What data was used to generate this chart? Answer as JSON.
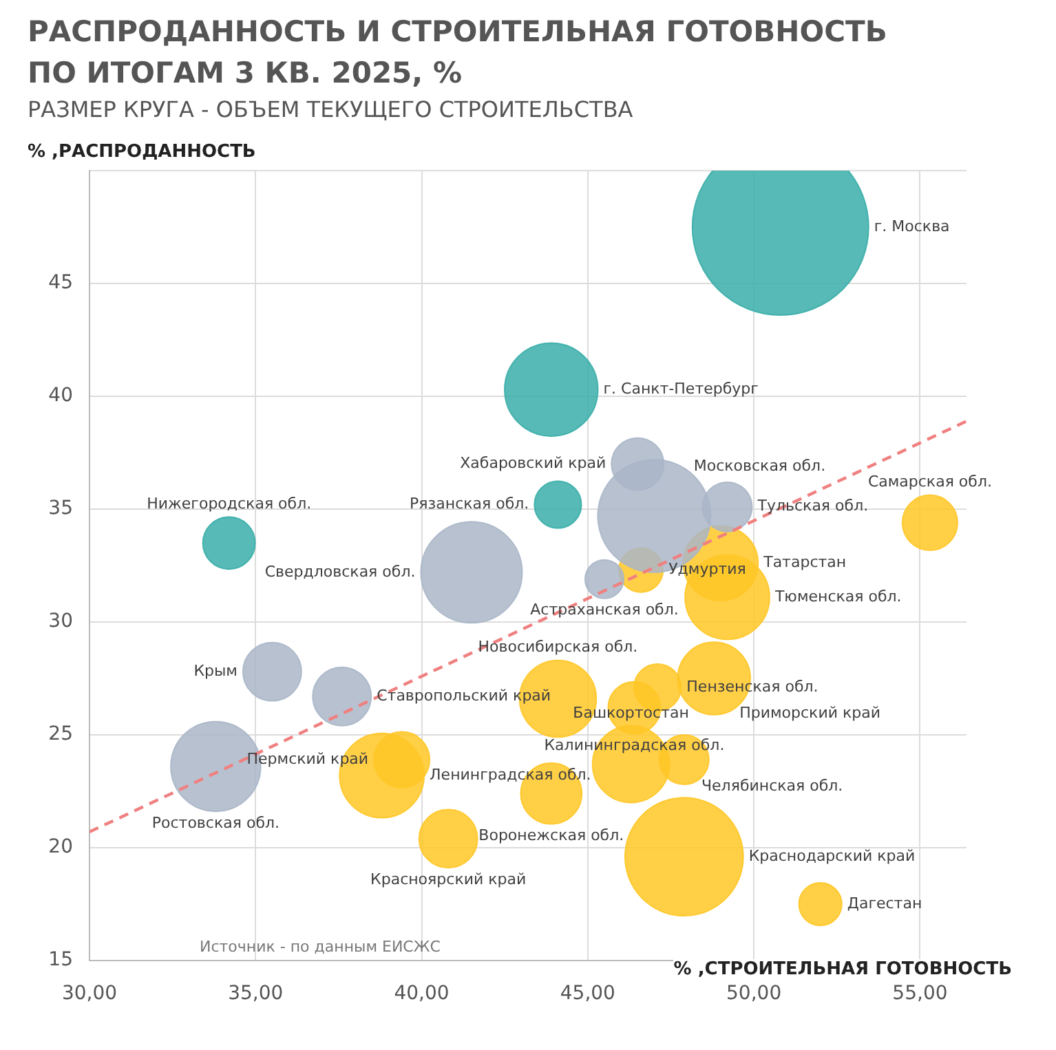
{
  "chart_data": {
    "type": "bubble",
    "title": "РАСПРОДАННОСТЬ И СТРОИТЕЛЬНАЯ ГОТОВНОСТЬ\nПО ИТОГАМ 3 КВ. 2025, %",
    "subtitle": "РАЗМЕР КРУГА - ОБЪЕМ ТЕКУЩЕГО СТРОИТЕЛЬСТВА",
    "xlabel": "% ,СТРОИТЕЛЬНАЯ ГОТОВНОСТЬ",
    "ylabel": "% ,РАСПРОДАННОСТЬ",
    "xlim": [
      30,
      56.4
    ],
    "xticks": [
      {
        "value": 30,
        "label": "30,00"
      },
      {
        "value": 35,
        "label": "35,00"
      },
      {
        "value": 40,
        "label": "40,00"
      },
      {
        "value": 45,
        "label": "45,00"
      },
      {
        "value": 50,
        "label": "50,00"
      },
      {
        "value": 55,
        "label": "55,00"
      }
    ],
    "ylim": [
      15,
      50
    ],
    "yticks": [
      15,
      20,
      25,
      30,
      35,
      40,
      45,
      {
        "value": 50,
        "label": null
      }
    ],
    "grid": true,
    "legend": false,
    "series": [
      {
        "color": "#3aaea9",
        "x": [
          50.8,
          43.9,
          44.1,
          34.2
        ],
        "values": [
          47.5,
          40.3,
          35.2,
          33.5
        ],
        "sizes": [
          1,
          0.28,
          0.071,
          0.088
        ],
        "value_labels": [
          "г. Москва",
          "г. Санкт-Петербург",
          "Рязанская обл.",
          "Нижегородская обл."
        ]
      },
      {
        "color": "#aab6c8",
        "x": [
          46.5,
          47.0,
          49.2,
          41.5,
          45.5,
          35.5,
          37.6,
          33.8
        ],
        "values": [
          37.0,
          34.7,
          35.1,
          32.2,
          31.9,
          27.8,
          26.7,
          23.6
        ],
        "sizes": [
          0.088,
          0.41,
          0.079,
          0.33,
          0.048,
          0.11,
          0.11,
          0.26
        ],
        "value_labels": [
          "Хабаровский край",
          "Московская обл.",
          "Тульская обл.",
          "Свердловская обл.",
          "Астраханская обл.",
          "Крым",
          "Ставропольский край",
          "Ростовская обл."
        ]
      },
      {
        "color": "#ffc726",
        "x": [
          55.3,
          46.6,
          49.0,
          49.2,
          38.8,
          39.4,
          40.8,
          44.1,
          43.9,
          47.1,
          48.8,
          46.4,
          46.3,
          47.9,
          47.9,
          52.0
        ],
        "values": [
          34.4,
          32.3,
          32.6,
          31.1,
          23.2,
          23.9,
          20.4,
          26.6,
          22.4,
          27.1,
          27.5,
          26.2,
          23.7,
          23.9,
          19.6,
          17.5
        ],
        "sizes": [
          0.098,
          0.063,
          0.18,
          0.23,
          0.23,
          0.1,
          0.11,
          0.19,
          0.12,
          0.071,
          0.17,
          0.088,
          0.19,
          0.079,
          0.45,
          0.059
        ],
        "value_labels": [
          "Самарская обл.",
          "Удмуртия",
          "Татарстан",
          "Тюменская обл.",
          "Ленинградская обл.",
          "Пермский край",
          "Красноярский край",
          "Новосибирская обл.",
          "Воронежская обл.",
          "Пензенская обл.",
          "Приморский край",
          "Калининградская обл.",
          "Башкортостан",
          "Челябинская обл.",
          "Краснодарский край",
          "Дагестан"
        ]
      },
      {
        "type": "line",
        "color": "#f08080",
        "line_style": "dashed",
        "marker": "none",
        "x": [
          30,
          56.4
        ],
        "values": [
          20.7,
          38.9
        ]
      }
    ],
    "annotations": [
      "Источник - по данным ЕИСЖС"
    ]
  }
}
